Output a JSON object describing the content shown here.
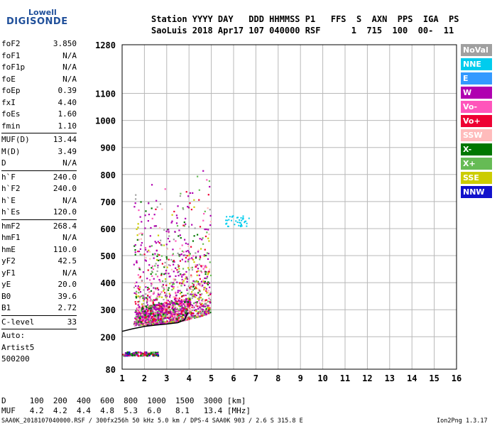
{
  "logo": {
    "top": "Lowell",
    "main": "DIGISONDE"
  },
  "header": {
    "line1": "Station YYYY DAY   DDD HHMMSS P1   FFS  S  AXN  PPS  IGA  PS",
    "line2": "SaoLuis 2018 Apr17 107 040000 RSF      1  715  100  00-  11"
  },
  "sidebar": {
    "group1": [
      {
        "k": "foF2",
        "v": "3.850"
      },
      {
        "k": "foF1",
        "v": "N/A"
      },
      {
        "k": "foF1p",
        "v": "N/A"
      },
      {
        "k": "foE",
        "v": "N/A"
      },
      {
        "k": "foEp",
        "v": "0.39"
      },
      {
        "k": "fxI",
        "v": "4.40"
      },
      {
        "k": "foEs",
        "v": "1.60"
      },
      {
        "k": "fmin",
        "v": "1.10"
      }
    ],
    "group2": [
      {
        "k": "MUF(D)",
        "v": "13.44"
      },
      {
        "k": "M(D)",
        "v": "3.49"
      },
      {
        "k": "D",
        "v": "N/A"
      }
    ],
    "group3": [
      {
        "k": "h`F",
        "v": "240.0"
      },
      {
        "k": "h`F2",
        "v": "240.0"
      },
      {
        "k": "h`E",
        "v": "N/A"
      },
      {
        "k": "h`Es",
        "v": "120.0"
      }
    ],
    "group4": [
      {
        "k": "hmF2",
        "v": "268.4"
      },
      {
        "k": "hmF1",
        "v": "N/A"
      },
      {
        "k": "hmE",
        "v": "110.0"
      },
      {
        "k": "yF2",
        "v": "42.5"
      },
      {
        "k": "yF1",
        "v": "N/A"
      },
      {
        "k": "yE",
        "v": "20.0"
      },
      {
        "k": "B0",
        "v": "39.6"
      },
      {
        "k": "B1",
        "v": "2.72"
      }
    ],
    "group5": [
      {
        "k": "C-level",
        "v": "33"
      }
    ],
    "auto": [
      "Auto:",
      "Artist5",
      "500200"
    ]
  },
  "legend": [
    {
      "label": "NoVal",
      "color": "#a0a0a0"
    },
    {
      "label": "NNE",
      "color": "#00ccee"
    },
    {
      "label": "E",
      "color": "#3399ff"
    },
    {
      "label": "W",
      "color": "#b000b0"
    },
    {
      "label": "Vo-",
      "color": "#ff55bb"
    },
    {
      "label": "Vo+",
      "color": "#ee0033"
    },
    {
      "label": "SSW",
      "color": "#ffbbbb"
    },
    {
      "label": "X-",
      "color": "#007700"
    },
    {
      "label": "X+",
      "color": "#66bb55"
    },
    {
      "label": "SSE",
      "color": "#cccc00"
    },
    {
      "label": "NNW",
      "color": "#1111cc"
    }
  ],
  "chart_data": {
    "type": "scatter",
    "xlim": [
      1,
      16
    ],
    "ylim": [
      80,
      1280
    ],
    "x_ticks": [
      1,
      2,
      3,
      4,
      5,
      6,
      7,
      8,
      9,
      10,
      11,
      12,
      13,
      14,
      15,
      16
    ],
    "y_ticks": [
      80,
      200,
      300,
      400,
      500,
      600,
      700,
      800,
      900,
      1000,
      1100,
      1280
    ],
    "grid": true,
    "trace_x": [
      1.0,
      1.5,
      2.0,
      2.5,
      3.0,
      3.5,
      3.8,
      3.95
    ],
    "trace_y": [
      220,
      230,
      238,
      243,
      247,
      252,
      262,
      290
    ]
  },
  "footer": {
    "d_row": "D     100  200  400  600  800  1000  1500  3000 [km]",
    "muf_row": "MUF   4.2  4.2  4.4  4.8  5.3  6.0   8.1   13.4 [MHz]",
    "info": "SAA0K_2018107040000.RSF / 300fx256h 50 kHz 5.0 km / DPS-4 SAA0K 903 / 2.6 S 315.8 E",
    "version": "Ion2Png 1.3.17"
  }
}
